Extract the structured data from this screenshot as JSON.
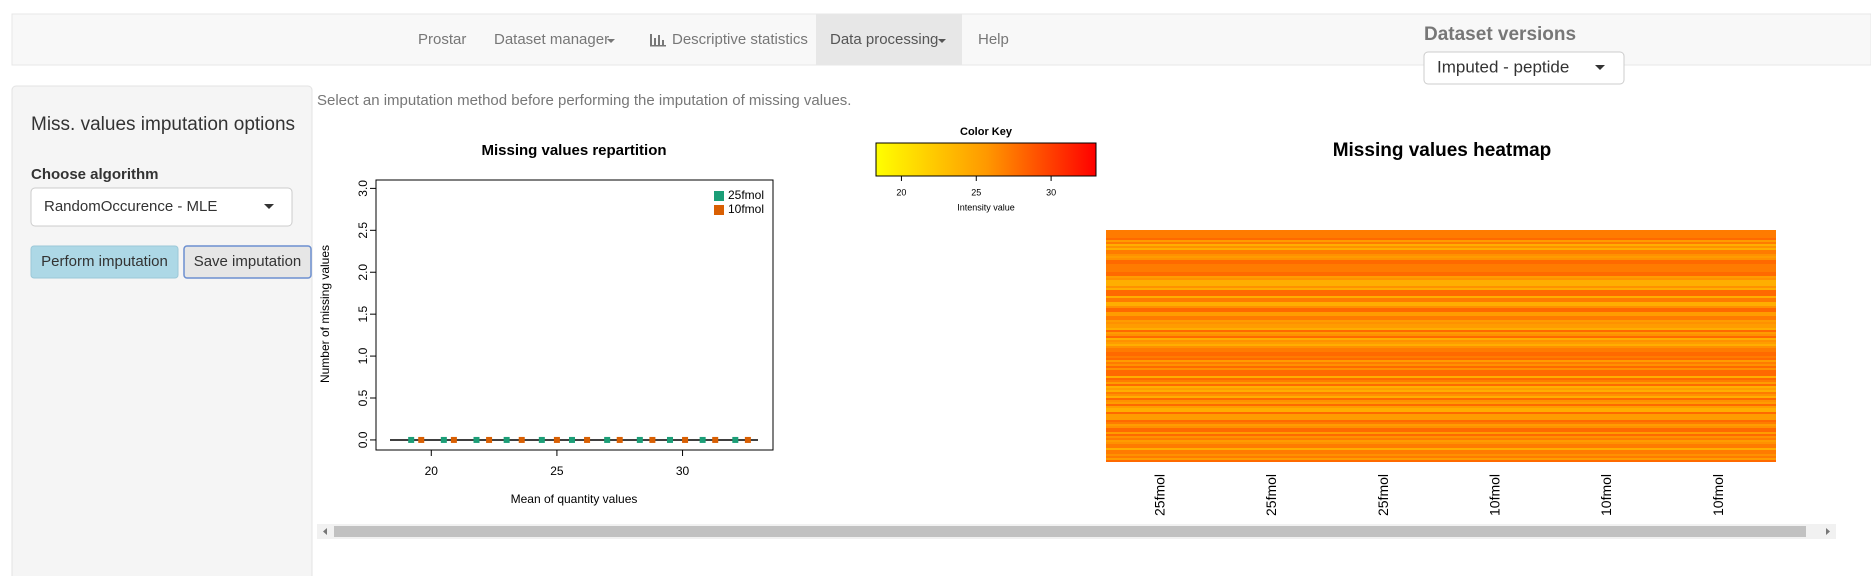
{
  "navbar": {
    "items": [
      "Prostar",
      "Dataset manager",
      "Descriptive statistics",
      "Data processing",
      "Help"
    ],
    "versions_label": "Dataset versions",
    "versions_value": "Imputed - peptide"
  },
  "sidebar": {
    "title": "Miss. values imputation options",
    "algorithm_label": "Choose algorithm",
    "algorithm_value": "RandomOccurence - MLE",
    "buttons": [
      "Perform imputation",
      "Save imputation"
    ]
  },
  "help_text": "Select an imputation method before performing the imputation of missing values.",
  "chart_data": [
    {
      "type": "scatter",
      "title": "Missing values repartition",
      "x_label": "Mean of quantity values",
      "y_label": "Number of missing values",
      "xlim": [
        17.8,
        33.6
      ],
      "ylim": [
        -0.12,
        3.1
      ],
      "xticks": [
        20,
        25,
        30
      ],
      "yticks": [
        {
          "value": 0,
          "label": "0.0"
        },
        {
          "value": 0.5,
          "label": "0.5"
        },
        {
          "value": 1,
          "label": "1.0"
        },
        {
          "value": 1.5,
          "label": "1.5"
        },
        {
          "value": 2,
          "label": "2.0"
        },
        {
          "value": 2.5,
          "label": "2.5"
        },
        {
          "value": 3,
          "label": "3.0"
        }
      ],
      "legend": "top-right",
      "series": [
        {
          "name": "25fmol",
          "color": "#1b9e77",
          "x": [
            19.2,
            20.5,
            21.8,
            23,
            24.4,
            25.6,
            27,
            28.3,
            29.5,
            30.8,
            32.1
          ],
          "values": [
            0,
            0,
            0,
            0,
            0,
            0,
            0,
            0,
            0,
            0,
            0
          ]
        },
        {
          "name": "10fmol",
          "color": "#d95f02",
          "x": [
            19.6,
            20.9,
            22.3,
            23.6,
            25,
            26.2,
            27.5,
            28.8,
            30.1,
            31.3,
            32.6
          ],
          "values": [
            0,
            0,
            0,
            0,
            0,
            0,
            0,
            0,
            0,
            0,
            0
          ]
        }
      ]
    },
    {
      "type": "colorkey",
      "title": "Color Key",
      "x_label": "Intensity value",
      "xlim": [
        18.3,
        33
      ],
      "xticks": [
        20,
        25,
        30
      ]
    },
    {
      "type": "heatmap",
      "title": "Missing values heatmap",
      "categories": [
        "25fmol",
        "25fmol",
        "25fmol",
        "10fmol",
        "10fmol",
        "10fmol"
      ]
    }
  ]
}
